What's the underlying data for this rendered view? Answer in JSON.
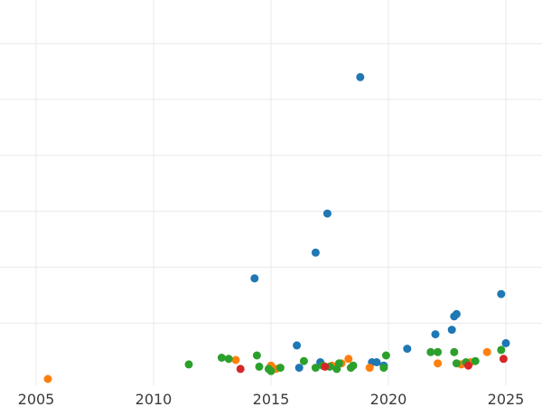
{
  "chart_data": {
    "type": "scatter",
    "title": "",
    "xlabel": "",
    "ylabel": "",
    "xlim": [
      2004.5,
      2026.5
    ],
    "ylim": [
      0,
      34
    ],
    "x_ticks": [
      2005,
      2010,
      2015,
      2020,
      2025
    ],
    "x_tick_labels": [
      "2005",
      "2010",
      "2015",
      "2020",
      "2025"
    ],
    "y_gridlines": [
      0,
      5,
      10,
      15,
      20,
      25,
      30
    ],
    "grid": true,
    "legend": "none",
    "series": [
      {
        "color": "#1f77b4",
        "points": [
          [
            2014.3,
            9.0
          ],
          [
            2016.1,
            3.0
          ],
          [
            2016.2,
            1.0
          ],
          [
            2016.9,
            11.3
          ],
          [
            2017.1,
            1.5
          ],
          [
            2017.4,
            14.8
          ],
          [
            2018.8,
            27.0
          ],
          [
            2019.3,
            1.5
          ],
          [
            2019.5,
            1.5
          ],
          [
            2019.8,
            1.2
          ],
          [
            2020.8,
            2.7
          ],
          [
            2022.0,
            4.0
          ],
          [
            2022.7,
            4.4
          ],
          [
            2022.8,
            5.6
          ],
          [
            2022.9,
            5.8
          ],
          [
            2024.8,
            7.6
          ],
          [
            2025.0,
            3.2
          ]
        ]
      },
      {
        "color": "#ff7f0e",
        "points": [
          [
            2005.5,
            0.0
          ],
          [
            2013.5,
            1.7
          ],
          [
            2015.0,
            1.2
          ],
          [
            2015.2,
            0.9
          ],
          [
            2017.6,
            1.2
          ],
          [
            2018.0,
            1.4
          ],
          [
            2018.3,
            1.8
          ],
          [
            2019.2,
            1.0
          ],
          [
            2022.1,
            1.4
          ],
          [
            2023.1,
            1.3
          ],
          [
            2023.5,
            1.5
          ],
          [
            2024.2,
            2.4
          ]
        ]
      },
      {
        "color": "#2ca02c",
        "points": [
          [
            2011.5,
            1.3
          ],
          [
            2012.9,
            1.9
          ],
          [
            2013.2,
            1.8
          ],
          [
            2014.4,
            2.1
          ],
          [
            2014.5,
            1.1
          ],
          [
            2014.9,
            0.9
          ],
          [
            2015.0,
            0.7
          ],
          [
            2015.4,
            1.0
          ],
          [
            2016.4,
            1.6
          ],
          [
            2016.9,
            1.0
          ],
          [
            2017.2,
            1.2
          ],
          [
            2017.5,
            1.1
          ],
          [
            2017.8,
            0.9
          ],
          [
            2017.9,
            1.4
          ],
          [
            2018.4,
            1.0
          ],
          [
            2018.5,
            1.2
          ],
          [
            2019.8,
            1.0
          ],
          [
            2019.9,
            2.1
          ],
          [
            2021.8,
            2.4
          ],
          [
            2022.1,
            2.4
          ],
          [
            2022.8,
            2.4
          ],
          [
            2022.9,
            1.4
          ],
          [
            2023.3,
            1.5
          ],
          [
            2023.7,
            1.6
          ],
          [
            2024.8,
            2.6
          ]
        ]
      },
      {
        "color": "#d62728",
        "points": [
          [
            2013.7,
            0.9
          ],
          [
            2017.3,
            1.1
          ],
          [
            2023.4,
            1.2
          ],
          [
            2024.9,
            1.8
          ]
        ]
      }
    ]
  }
}
